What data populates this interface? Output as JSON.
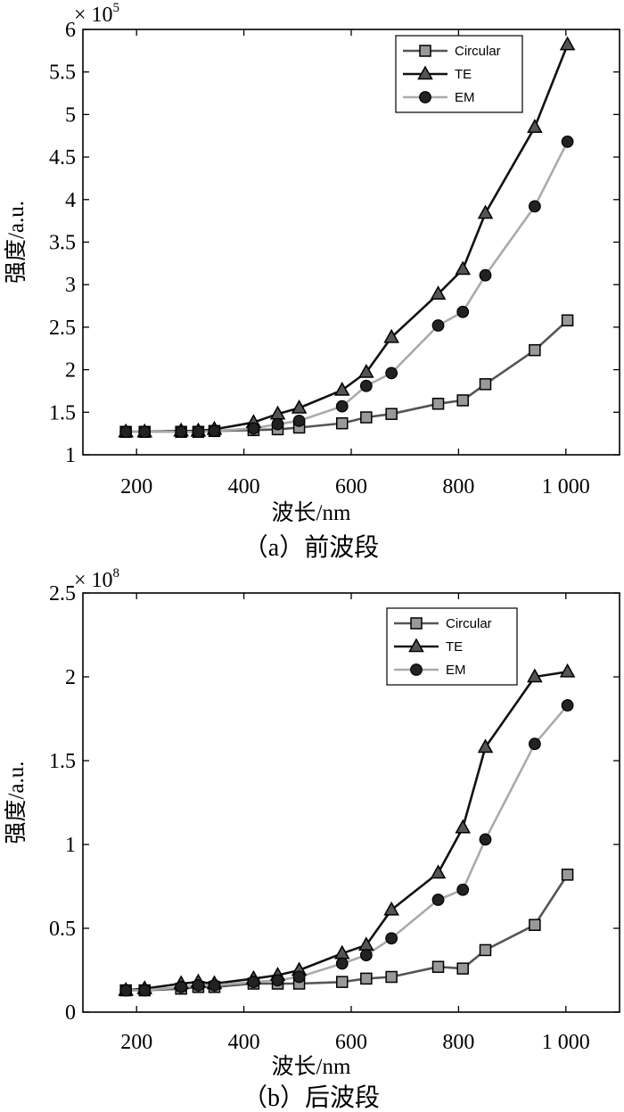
{
  "chart_data": [
    {
      "type": "line",
      "title": "",
      "xlabel": "波长/nm",
      "ylabel": "强度/a.u.",
      "caption": "（a）前波段",
      "multiplier": "× 10",
      "multiplier_exp": "5",
      "xlim": [
        100,
        1100
      ],
      "ylim": [
        1,
        6
      ],
      "xticks": [
        200,
        400,
        600,
        800,
        1000
      ],
      "xtick_labels": [
        "200",
        "400",
        "600",
        "800",
        "1 000"
      ],
      "yticks": [
        1,
        1.5,
        2,
        2.5,
        3,
        3.5,
        4,
        4.5,
        5,
        5.5,
        6
      ],
      "ytick_labels": [
        "1",
        "1.5",
        "2",
        "2.5",
        "3",
        "3.5",
        "4",
        "4.5",
        "5",
        "5.5",
        "6"
      ],
      "legend_position": "top-right",
      "x": [
        180,
        215,
        283,
        315,
        345,
        418,
        463,
        503,
        583,
        628,
        675,
        762,
        808,
        850,
        942,
        1003
      ],
      "series": [
        {
          "name": "Circular",
          "marker": "square",
          "line_color": "#555555",
          "marker_color": "#999999",
          "values": [
            1.27,
            1.27,
            1.27,
            1.27,
            1.28,
            1.29,
            1.3,
            1.32,
            1.37,
            1.44,
            1.48,
            1.6,
            1.64,
            1.83,
            2.23,
            2.58
          ]
        },
        {
          "name": "TE",
          "marker": "triangle",
          "line_color": "#111111",
          "marker_color": "#555555",
          "values": [
            1.27,
            1.27,
            1.28,
            1.28,
            1.3,
            1.38,
            1.48,
            1.55,
            1.76,
            1.97,
            2.38,
            2.89,
            3.18,
            3.84,
            4.85,
            5.82
          ]
        },
        {
          "name": "EM",
          "marker": "circle",
          "line_color": "#aaaaaa",
          "marker_color": "#222222",
          "values": [
            1.27,
            1.27,
            1.27,
            1.27,
            1.28,
            1.31,
            1.36,
            1.4,
            1.57,
            1.81,
            1.96,
            2.52,
            2.68,
            3.11,
            3.92,
            4.68
          ]
        }
      ]
    },
    {
      "type": "line",
      "title": "",
      "xlabel": "波长/nm",
      "ylabel": "强度/a.u.",
      "caption": "（b）后波段",
      "multiplier": "× 10",
      "multiplier_exp": "8",
      "xlim": [
        100,
        1100
      ],
      "ylim": [
        0,
        2.5
      ],
      "xticks": [
        200,
        400,
        600,
        800,
        1000
      ],
      "xtick_labels": [
        "200",
        "400",
        "600",
        "800",
        "1 000"
      ],
      "yticks": [
        0,
        0.5,
        1,
        1.5,
        2,
        2.5
      ],
      "ytick_labels": [
        "0",
        "0.5",
        "1",
        "1.5",
        "2",
        "2.5"
      ],
      "legend_position": "top-right",
      "x": [
        180,
        215,
        283,
        315,
        345,
        418,
        463,
        503,
        583,
        628,
        675,
        762,
        808,
        850,
        942,
        1003
      ],
      "series": [
        {
          "name": "Circular",
          "marker": "square",
          "line_color": "#555555",
          "marker_color": "#999999",
          "values": [
            0.13,
            0.13,
            0.14,
            0.15,
            0.15,
            0.17,
            0.17,
            0.17,
            0.18,
            0.2,
            0.21,
            0.27,
            0.26,
            0.37,
            0.52,
            0.82
          ]
        },
        {
          "name": "TE",
          "marker": "triangle",
          "line_color": "#111111",
          "marker_color": "#555555",
          "values": [
            0.13,
            0.14,
            0.17,
            0.18,
            0.17,
            0.2,
            0.22,
            0.25,
            0.35,
            0.4,
            0.61,
            0.83,
            1.1,
            1.58,
            2.0,
            2.03
          ]
        },
        {
          "name": "EM",
          "marker": "circle",
          "line_color": "#aaaaaa",
          "marker_color": "#222222",
          "values": [
            0.13,
            0.13,
            0.15,
            0.16,
            0.16,
            0.18,
            0.19,
            0.21,
            0.29,
            0.34,
            0.44,
            0.67,
            0.73,
            1.03,
            1.6,
            1.83
          ]
        }
      ]
    }
  ]
}
